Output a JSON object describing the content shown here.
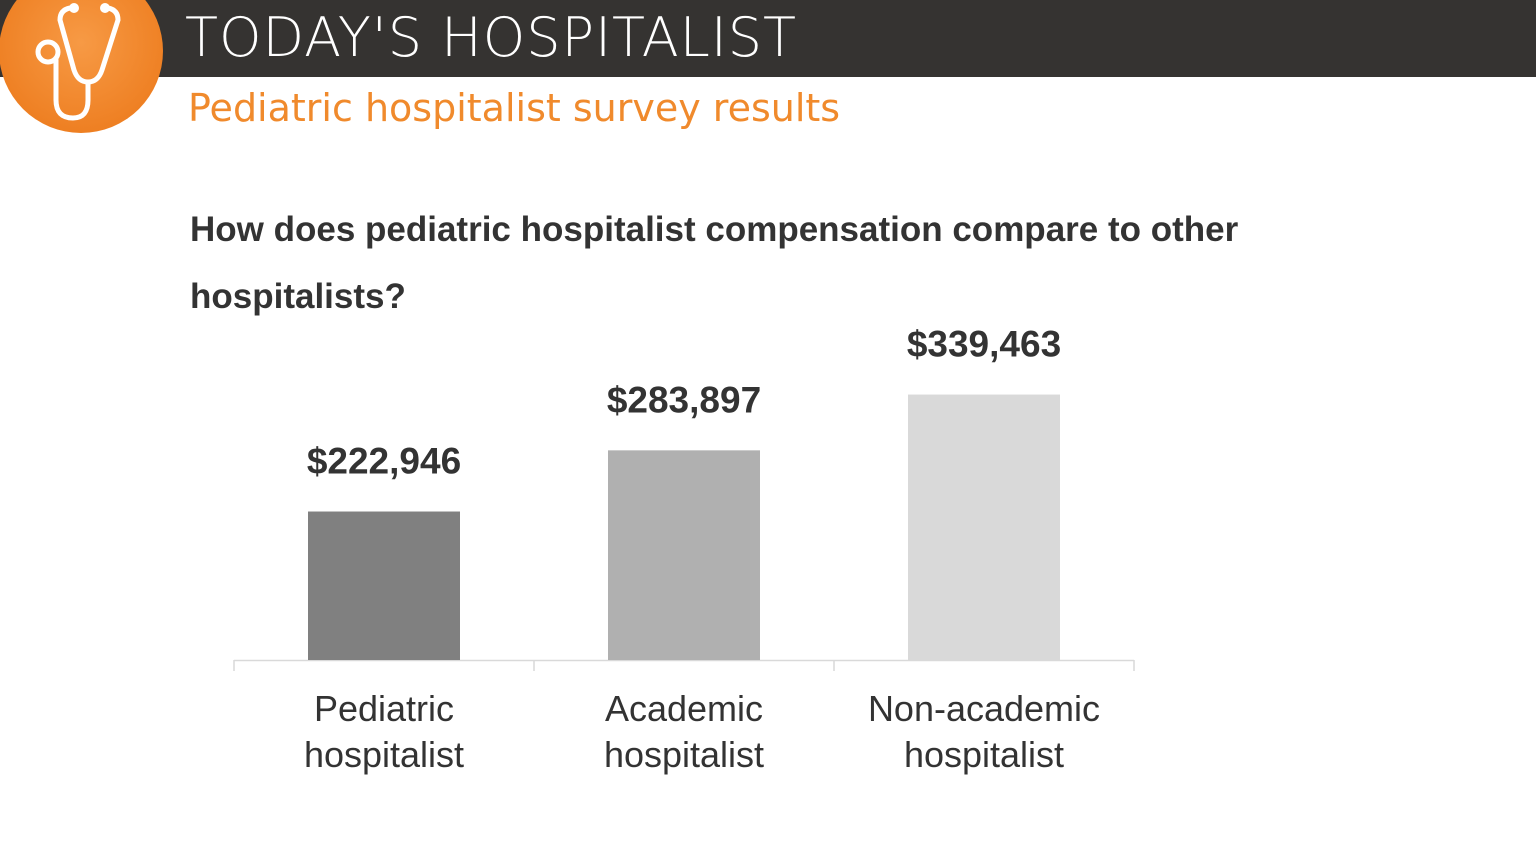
{
  "header": {
    "brand": "TODAY'S HOSPITALIST",
    "subtitle": "Pediatric hospitalist survey results",
    "logo_icon": "stethoscope-icon",
    "colors": {
      "bar": "#353331",
      "accent": "#f08a2c"
    }
  },
  "chart_data": {
    "type": "bar",
    "title": "How does pediatric hospitalist compensation compare to other hospitalists?",
    "categories": [
      [
        "Pediatric",
        "hospitalist"
      ],
      [
        "Academic",
        "hospitalist"
      ],
      [
        "Non-academic",
        "hospitalist"
      ]
    ],
    "values": [
      222946,
      283897,
      339463
    ],
    "data_labels": [
      "$222,946",
      "$283,897",
      "$339,463"
    ],
    "colors": [
      "#808080",
      "#b0b0b0",
      "#d9d9d9"
    ],
    "ylim": [
      75000,
      350000
    ],
    "grid": false,
    "legend": "none",
    "xlabel": "",
    "ylabel": ""
  }
}
